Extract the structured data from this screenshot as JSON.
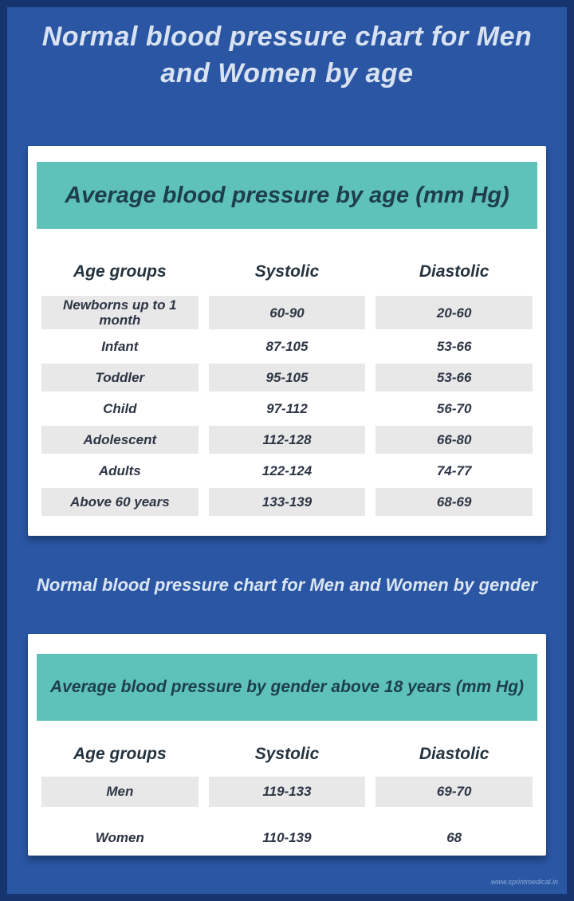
{
  "page": {
    "title": "Normal blood pressure chart for Men and Women by age",
    "title_lines": [
      "Normal blood pressure chart for Men",
      "and Women by age"
    ],
    "subtitle": "Normal blood pressure chart for Men and Women by gender",
    "watermark": "www.sprintmedical.in"
  },
  "colors": {
    "frame": "#16356f",
    "background": "#2a56a4",
    "teal_banner": "#5ec2bb",
    "banner_text": "#1e3e4e",
    "card_background": "#ffffff",
    "row_shade": "#e8e8e8",
    "table_text": "#2d3444",
    "title_text": "#d8e2f1",
    "watermark_text": "#8fb0da"
  },
  "chart_data": [
    {
      "type": "table",
      "title": "Average blood pressure by age (mm Hg)",
      "columns": [
        "Age groups",
        "Systolic",
        "Diastolic"
      ],
      "rows": [
        [
          "Newborns up to 1 month",
          "60-90",
          "20-60"
        ],
        [
          "Infant",
          "87-105",
          "53-66"
        ],
        [
          "Toddler",
          "95-105",
          "53-66"
        ],
        [
          "Child",
          "97-112",
          "56-70"
        ],
        [
          "Adolescent",
          "112-128",
          "66-80"
        ],
        [
          "Adults",
          "122-124",
          "74-77"
        ],
        [
          "Above 60 years",
          "133-139",
          "68-69"
        ]
      ]
    },
    {
      "type": "table",
      "title": "Average blood pressure by gender above 18 years (mm Hg)",
      "columns": [
        "Age groups",
        "Systolic",
        "Diastolic"
      ],
      "rows": [
        [
          "Men",
          "119-133",
          "69-70"
        ],
        [
          "Women",
          "110-139",
          "68"
        ]
      ]
    }
  ]
}
